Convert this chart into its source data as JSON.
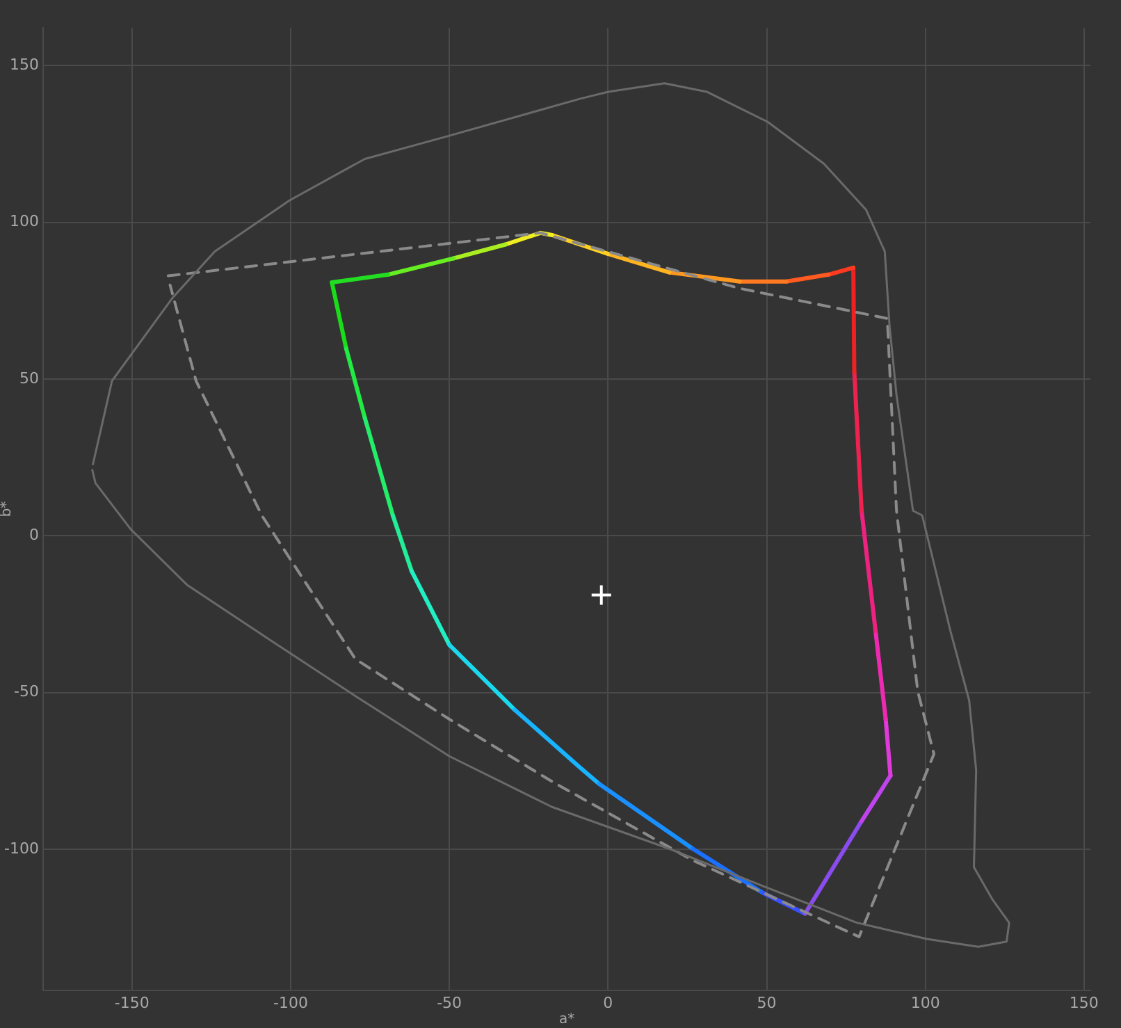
{
  "chart_data": {
    "type": "line",
    "xlabel": "a*",
    "ylabel": "b*",
    "xlim": [
      -178,
      152
    ],
    "ylim": [
      -145,
      162
    ],
    "xticks": [
      -150,
      -100,
      -50,
      0,
      50,
      100,
      150
    ],
    "yticks": [
      -100,
      -50,
      0,
      50,
      100,
      150
    ],
    "grid": true,
    "marker": "none",
    "line_style": "solid",
    "series": [
      {
        "color": "#6a6a6a",
        "line_style": "solid",
        "x": [
          -162.3,
          -156.3,
          -137.2,
          -123.9,
          -100.3,
          -76.6,
          -50,
          -8.7,
          0.1,
          17.8,
          31.1,
          50.3,
          68,
          81.3,
          87.2,
          88.7,
          90.9,
          96.1,
          99,
          107.9,
          113.8,
          116,
          115.3,
          121.2,
          126.4,
          125.6,
          116.7,
          100.5,
          78.4,
          48.8,
          19.3,
          -17.6,
          -50,
          -79.6,
          -106.2,
          -132.7,
          -150.4,
          -161.5,
          -162.5
        ],
        "values": [
          22.8,
          49.4,
          75.9,
          90.7,
          107,
          120.2,
          127.6,
          139.4,
          141.6,
          144.3,
          141.6,
          132,
          118.7,
          104,
          90.7,
          67.1,
          44.9,
          8,
          6.5,
          -30.4,
          -52.5,
          -74.7,
          -105.7,
          -116.1,
          -123.4,
          -129.4,
          -131.1,
          -128.6,
          -123.4,
          -111.7,
          -99.8,
          -86.5,
          -70.3,
          -51.1,
          -33.4,
          -15.6,
          2.1,
          16.8,
          21
        ]
      },
      {
        "color": "#8a8a8a",
        "line_style": "dashed",
        "x": [
          -138.6,
          -21.3,
          41.5,
          88,
          90.9,
          97.6,
          102.7,
          79.1,
          26.7,
          -17.6,
          -50,
          -79.6,
          -109.1,
          -129.8,
          -138
        ],
        "values": [
          82.9,
          96.6,
          78.9,
          69.3,
          8,
          -49.6,
          -69.6,
          -127.9,
          -103.5,
          -78.4,
          -58.5,
          -39.3,
          6.5,
          49.4,
          80
        ]
      },
      {
        "color": "#22dd22",
        "x": [
          -87,
          -69.3
        ],
        "values": [
          80.8,
          83.3
        ]
      },
      {
        "color": "#66ee22",
        "x": [
          -69.3,
          -48.6
        ],
        "values": [
          83.3,
          88.5
        ]
      },
      {
        "color": "#aaee22",
        "x": [
          -48.6,
          -32.3
        ],
        "values": [
          88.5,
          92.9
        ]
      },
      {
        "color": "#eeee22",
        "x": [
          -32.3,
          -21.3,
          -17.6
        ],
        "values": [
          92.9,
          96.6,
          95.9
        ]
      },
      {
        "color": "#ffd022",
        "x": [
          -17.6,
          0.1
        ],
        "values": [
          95.9,
          89.9
        ]
      },
      {
        "color": "#ffb420",
        "x": [
          0.1,
          19.3
        ],
        "values": [
          89.9,
          84
        ]
      },
      {
        "color": "#ff9820",
        "x": [
          19.3,
          41.5
        ],
        "values": [
          84,
          81.1
        ]
      },
      {
        "color": "#ff7a20",
        "x": [
          41.5,
          56.2
        ],
        "values": [
          81.1,
          81.1
        ]
      },
      {
        "color": "#ff5a20",
        "x": [
          56.2,
          69.5
        ],
        "values": [
          81.1,
          83.3
        ]
      },
      {
        "color": "#ff3a20",
        "x": [
          69.5,
          77.3
        ],
        "values": [
          83.3,
          85.5
        ]
      },
      {
        "color": "#ee2222",
        "x": [
          77.3,
          77.6
        ],
        "values": [
          85.5,
          52.3
        ]
      },
      {
        "color": "#ee2250",
        "x": [
          77.6,
          79.9
        ],
        "values": [
          52.3,
          8
        ]
      },
      {
        "color": "#ee2280",
        "x": [
          79.9,
          84.3
        ],
        "values": [
          8,
          -30.4
        ]
      },
      {
        "color": "#ee2ab0",
        "x": [
          84.3,
          87.5
        ],
        "values": [
          -30.4,
          -58.5
        ]
      },
      {
        "color": "#e03ada",
        "x": [
          87.5,
          89
        ],
        "values": [
          -58.5,
          -76.5
        ]
      },
      {
        "color": "#c044ee",
        "x": [
          89,
          79.9
        ],
        "values": [
          -76.5,
          -91
        ]
      },
      {
        "color": "#8a4cee",
        "x": [
          79.9,
          62.1
        ],
        "values": [
          -91,
          -120.5
        ]
      },
      {
        "color": "#3a50ff",
        "x": [
          62.1,
          48.8
        ],
        "values": [
          -120.5,
          -113.9
        ]
      },
      {
        "color": "#1a70ff",
        "x": [
          48.8,
          26.7
        ],
        "values": [
          -113.9,
          -99.8
        ]
      },
      {
        "color": "#1a90ff",
        "x": [
          26.7,
          -2.8
        ],
        "values": [
          -99.8,
          -79.1
        ]
      },
      {
        "color": "#18b4ff",
        "x": [
          -2.8,
          -8.7,
          -29.4
        ],
        "values": [
          -79.1,
          -74,
          -55.5
        ]
      },
      {
        "color": "#1ad8ee",
        "x": [
          -29.4,
          -50
        ],
        "values": [
          -55.5,
          -34.8
        ]
      },
      {
        "color": "#22eec4",
        "x": [
          -50,
          -61.9
        ],
        "values": [
          -34.8,
          -11.2
        ]
      },
      {
        "color": "#22ee99",
        "x": [
          -61.9,
          -67.8
        ],
        "values": [
          -11.2,
          6.5
        ]
      },
      {
        "color": "#22ee6a",
        "x": [
          -67.8,
          -76.6
        ],
        "values": [
          6.5,
          37.5
        ]
      },
      {
        "color": "#22ea44",
        "x": [
          -76.6,
          -82.5
        ],
        "values": [
          37.5,
          59.7
        ]
      },
      {
        "color": "#1add1a",
        "x": [
          -82.5,
          -87
        ],
        "values": [
          59.7,
          80.8
        ]
      },
      {
        "type": "scatter",
        "color": "#ffffff",
        "marker": "cross",
        "x": [
          -2.1
        ],
        "values": [
          -18.9
        ]
      }
    ]
  }
}
